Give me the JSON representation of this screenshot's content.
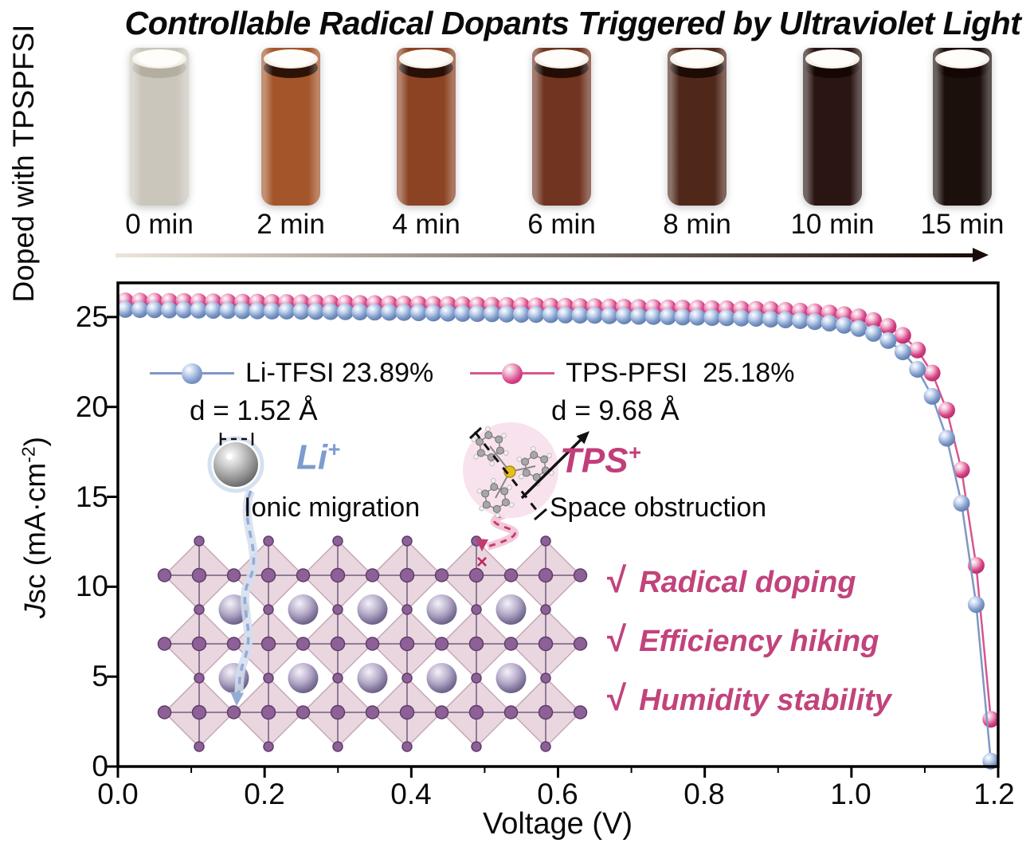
{
  "figure": {
    "title": "Controllable Radical Dopants Triggered by Ultraviolet Light",
    "side_label": "Doped with TPSPFSI"
  },
  "vials": {
    "items": [
      {
        "time": "0 min",
        "color": "#cac6bc"
      },
      {
        "time": "2 min",
        "color": "#a4562a"
      },
      {
        "time": "4 min",
        "color": "#8c4323"
      },
      {
        "time": "6 min",
        "color": "#703420"
      },
      {
        "time": "8 min",
        "color": "#50281a"
      },
      {
        "time": "10 min",
        "color": "#2a1512"
      },
      {
        "time": "15 min",
        "color": "#1c100d"
      }
    ],
    "arrow_colors": {
      "start": "#ece5da",
      "end": "#1a0c08"
    }
  },
  "legend": {
    "entries": [
      {
        "label": "Li-TFSI 23.89%",
        "color": "#7e9ac9"
      },
      {
        "label": "TPS-PFSI  25.18%",
        "color": "#d64385"
      }
    ]
  },
  "annotations": {
    "li": {
      "distance": "d = 1.52 Å",
      "ion": "Li",
      "ion_charge": "+",
      "mechanism": "Ionic migration",
      "color": "#7d9ccf"
    },
    "tps": {
      "distance": "d = 9.68 Å",
      "ion": "TPS",
      "ion_charge": "+",
      "mechanism": "Space obstruction",
      "color": "#c23d7b"
    },
    "blocked_mark": "×"
  },
  "checklist": {
    "check_glyph": "√",
    "color": "#c2437c",
    "items": [
      "Radical doping",
      "Efficiency hiking",
      "Humidity stability"
    ]
  },
  "chart_data": {
    "type": "line",
    "title": "",
    "xlabel": "Voltage (V)",
    "ylabel_italic": "J",
    "ylabel_sub": "sc",
    "ylabel_unit_open": " (mA·cm",
    "ylabel_exp": "-2",
    "ylabel_unit_close": ")",
    "xlim": [
      0.0,
      1.2
    ],
    "ylim": [
      0,
      26.9
    ],
    "grid": false,
    "legend_position": "inside upper-left",
    "x_ticks": [
      0.0,
      0.2,
      0.4,
      0.6,
      0.8,
      1.0,
      1.2
    ],
    "x_tick_labels": [
      "0.0",
      "0.2",
      "0.4",
      "0.6",
      "0.8",
      "1.0",
      "1.2"
    ],
    "x_minor_ticks": [
      0.1,
      0.3,
      0.5,
      0.7,
      0.9,
      1.1
    ],
    "y_ticks": [
      0,
      5,
      10,
      15,
      20,
      25
    ],
    "y_tick_labels": [
      "0",
      "5",
      "10",
      "15",
      "20",
      "25"
    ],
    "series": [
      {
        "name": "Li-TFSI 23.89%",
        "efficiency": "23.89%",
        "marker_color": "#7e9ac9",
        "line_color": "#7e97c6",
        "points": [
          [
            0.01,
            25.42
          ],
          [
            0.03,
            25.41
          ],
          [
            0.05,
            25.4
          ],
          [
            0.07,
            25.39
          ],
          [
            0.09,
            25.39
          ],
          [
            0.11,
            25.38
          ],
          [
            0.13,
            25.37
          ],
          [
            0.15,
            25.36
          ],
          [
            0.17,
            25.35
          ],
          [
            0.19,
            25.34
          ],
          [
            0.21,
            25.33
          ],
          [
            0.23,
            25.33
          ],
          [
            0.25,
            25.32
          ],
          [
            0.27,
            25.31
          ],
          [
            0.29,
            25.3
          ],
          [
            0.31,
            25.29
          ],
          [
            0.33,
            25.28
          ],
          [
            0.35,
            25.27
          ],
          [
            0.37,
            25.26
          ],
          [
            0.39,
            25.25
          ],
          [
            0.41,
            25.24
          ],
          [
            0.43,
            25.22
          ],
          [
            0.45,
            25.21
          ],
          [
            0.47,
            25.2
          ],
          [
            0.49,
            25.19
          ],
          [
            0.51,
            25.18
          ],
          [
            0.53,
            25.16
          ],
          [
            0.55,
            25.15
          ],
          [
            0.57,
            25.14
          ],
          [
            0.59,
            25.13
          ],
          [
            0.61,
            25.11
          ],
          [
            0.63,
            25.1
          ],
          [
            0.65,
            25.09
          ],
          [
            0.67,
            25.07
          ],
          [
            0.69,
            25.06
          ],
          [
            0.71,
            25.04
          ],
          [
            0.73,
            25.03
          ],
          [
            0.75,
            25.02
          ],
          [
            0.77,
            25.0
          ],
          [
            0.79,
            24.99
          ],
          [
            0.81,
            24.97
          ],
          [
            0.83,
            24.96
          ],
          [
            0.85,
            24.94
          ],
          [
            0.87,
            24.93
          ],
          [
            0.89,
            24.88
          ],
          [
            0.91,
            24.84
          ],
          [
            0.93,
            24.8
          ],
          [
            0.95,
            24.74
          ],
          [
            0.97,
            24.66
          ],
          [
            0.99,
            24.54
          ],
          [
            1.01,
            24.36
          ],
          [
            1.03,
            24.09
          ],
          [
            1.05,
            23.69
          ],
          [
            1.07,
            23.06
          ],
          [
            1.09,
            22.09
          ],
          [
            1.11,
            20.59
          ],
          [
            1.13,
            18.26
          ],
          [
            1.15,
            14.64
          ],
          [
            1.17,
            9.01
          ],
          [
            1.19,
            0.3
          ]
        ]
      },
      {
        "name": "TPS-PFSI 25.18%",
        "efficiency": "25.18%",
        "marker_color": "#d64385",
        "line_color": "#d6568f",
        "points": [
          [
            0.01,
            25.9
          ],
          [
            0.03,
            25.89
          ],
          [
            0.05,
            25.88
          ],
          [
            0.07,
            25.87
          ],
          [
            0.09,
            25.87
          ],
          [
            0.11,
            25.86
          ],
          [
            0.13,
            25.85
          ],
          [
            0.15,
            25.84
          ],
          [
            0.17,
            25.83
          ],
          [
            0.19,
            25.83
          ],
          [
            0.21,
            25.82
          ],
          [
            0.23,
            25.81
          ],
          [
            0.25,
            25.8
          ],
          [
            0.27,
            25.79
          ],
          [
            0.29,
            25.78
          ],
          [
            0.31,
            25.77
          ],
          [
            0.33,
            25.76
          ],
          [
            0.35,
            25.75
          ],
          [
            0.37,
            25.74
          ],
          [
            0.39,
            25.73
          ],
          [
            0.41,
            25.72
          ],
          [
            0.43,
            25.71
          ],
          [
            0.45,
            25.7
          ],
          [
            0.47,
            25.69
          ],
          [
            0.49,
            25.67
          ],
          [
            0.51,
            25.66
          ],
          [
            0.53,
            25.65
          ],
          [
            0.55,
            25.64
          ],
          [
            0.57,
            25.63
          ],
          [
            0.59,
            25.61
          ],
          [
            0.61,
            25.6
          ],
          [
            0.63,
            25.59
          ],
          [
            0.65,
            25.58
          ],
          [
            0.67,
            25.56
          ],
          [
            0.69,
            25.55
          ],
          [
            0.71,
            25.54
          ],
          [
            0.73,
            25.53
          ],
          [
            0.75,
            25.51
          ],
          [
            0.77,
            25.5
          ],
          [
            0.79,
            25.49
          ],
          [
            0.81,
            25.47
          ],
          [
            0.83,
            25.46
          ],
          [
            0.85,
            25.44
          ],
          [
            0.87,
            25.43
          ],
          [
            0.89,
            25.42
          ],
          [
            0.91,
            25.37
          ],
          [
            0.93,
            25.33
          ],
          [
            0.95,
            25.29
          ],
          [
            0.97,
            25.23
          ],
          [
            0.99,
            25.14
          ],
          [
            1.01,
            25.01
          ],
          [
            1.03,
            24.81
          ],
          [
            1.05,
            24.48
          ],
          [
            1.07,
            23.98
          ],
          [
            1.09,
            23.17
          ],
          [
            1.11,
            21.89
          ],
          [
            1.13,
            19.82
          ],
          [
            1.15,
            16.5
          ],
          [
            1.17,
            11.19
          ],
          [
            1.19,
            2.63
          ]
        ]
      }
    ]
  }
}
